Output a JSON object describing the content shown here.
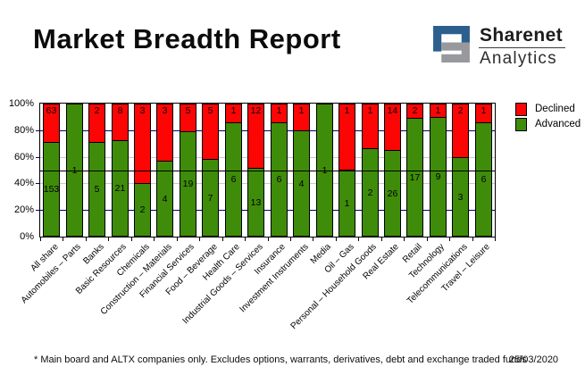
{
  "title": "Market Breadth Report",
  "logo": {
    "name": "Sharenet",
    "subtitle": "Analytics"
  },
  "footnote": "* Main board and ALTX companies only. Excludes options, warrants, derivatives, debt and exchange traded funds",
  "report_date": "25/03/2020",
  "colors": {
    "declined": "#fb0505",
    "advanced": "#3f8c0a",
    "grid_major": "#000080",
    "grid_minor": "#c9c9c9",
    "reference_line": "#000000",
    "logo_blue": "#2c5f8d",
    "logo_gray": "#97999c"
  },
  "chart_data": {
    "type": "bar",
    "stacked": true,
    "units": "percent_of_total",
    "categories": [
      "All share",
      "Automobiles – Parts",
      "Banks",
      "Basic Resources",
      "Chemicals",
      "Construction – Materials",
      "Financial Services",
      "Food – Beverage",
      "Health Care",
      "Industrial Goods – Services",
      "Insurance",
      "Investment Instruments",
      "Media",
      "Oil – Gas",
      "Personal – Household Goods",
      "Real Estate",
      "Retail",
      "Technology",
      "Telecommunications",
      "Travel – Leisure"
    ],
    "series": [
      {
        "name": "Declined",
        "color": "#fb0505",
        "values": [
          63,
          0,
          2,
          8,
          3,
          3,
          5,
          5,
          1,
          12,
          1,
          1,
          0,
          1,
          1,
          14,
          2,
          1,
          2,
          1
        ]
      },
      {
        "name": "Advanced",
        "color": "#3f8c0a",
        "values": [
          153,
          1,
          5,
          21,
          2,
          4,
          19,
          7,
          6,
          13,
          6,
          4,
          1,
          1,
          2,
          26,
          17,
          9,
          3,
          6
        ]
      }
    ],
    "y_tick_labels": [
      "100%",
      "80%",
      "60%",
      "40%",
      "20%",
      "0%"
    ],
    "y_tick_values": [
      100,
      80,
      60,
      40,
      20,
      0
    ],
    "ylim": [
      0,
      100
    ],
    "gridlines": {
      "major": [
        80,
        20
      ],
      "minor": [
        60,
        40
      ],
      "reference": 50
    },
    "legend": {
      "position": "top-right",
      "entries": [
        "Declined",
        "Advanced"
      ]
    }
  }
}
